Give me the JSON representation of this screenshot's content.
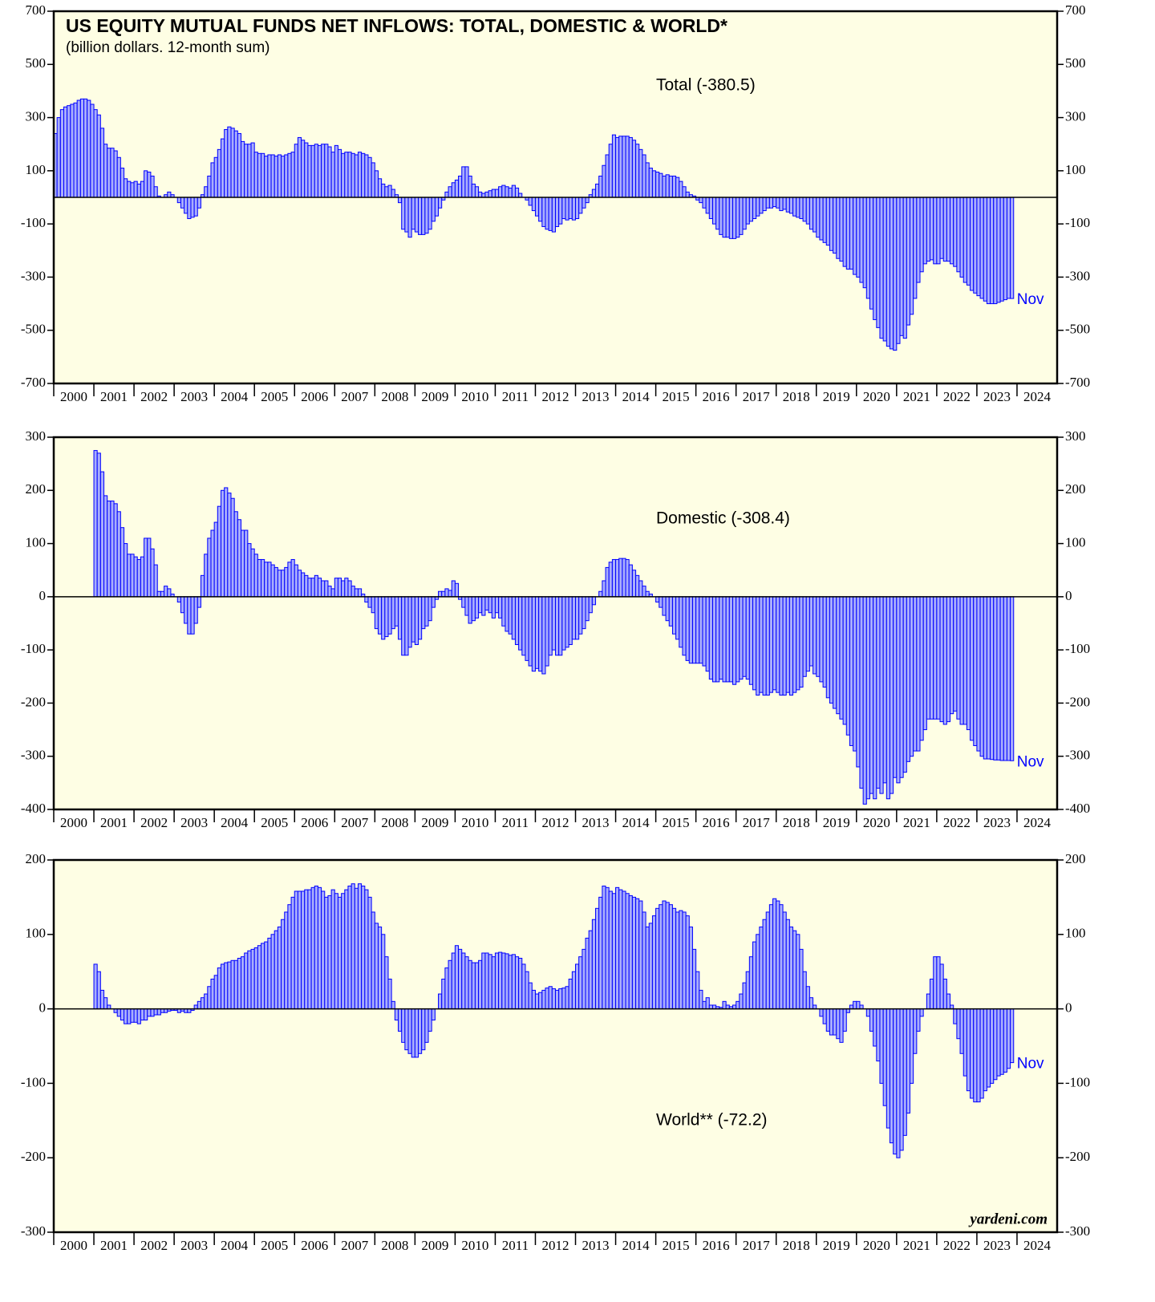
{
  "chart_data": {
    "type": "bar",
    "title": "US EQUITY MUTUAL FUNDS NET INFLOWS: TOTAL, DOMESTIC & WORLD*",
    "subtitle": "(billion dollars. 12-month sum)",
    "source": "yardeni.com",
    "x": [
      2000,
      2000.083,
      2000.167,
      2000.25,
      2000.333,
      2000.417,
      2000.5,
      2000.583,
      2000.667,
      2000.75,
      2000.833,
      2000.917,
      2001,
      2001.083,
      2001.167,
      2001.25,
      2001.333,
      2001.417,
      2001.5,
      2001.583,
      2001.667,
      2001.75,
      2001.833,
      2001.917,
      2002,
      2002.083,
      2002.167,
      2002.25,
      2002.333,
      2002.417,
      2002.5,
      2002.583,
      2002.667,
      2002.75,
      2002.833,
      2002.917,
      2003,
      2003.083,
      2003.167,
      2003.25,
      2003.333,
      2003.417,
      2003.5,
      2003.583,
      2003.667,
      2003.75,
      2003.833,
      2003.917,
      2004,
      2004.083,
      2004.167,
      2004.25,
      2004.333,
      2004.417,
      2004.5,
      2004.583,
      2004.667,
      2004.75,
      2004.833,
      2004.917,
      2005,
      2005.083,
      2005.167,
      2005.25,
      2005.333,
      2005.417,
      2005.5,
      2005.583,
      2005.667,
      2005.75,
      2005.833,
      2005.917,
      2006,
      2006.083,
      2006.167,
      2006.25,
      2006.333,
      2006.417,
      2006.5,
      2006.583,
      2006.667,
      2006.75,
      2006.833,
      2006.917,
      2007,
      2007.083,
      2007.167,
      2007.25,
      2007.333,
      2007.417,
      2007.5,
      2007.583,
      2007.667,
      2007.75,
      2007.833,
      2007.917,
      2008,
      2008.083,
      2008.167,
      2008.25,
      2008.333,
      2008.417,
      2008.5,
      2008.583,
      2008.667,
      2008.75,
      2008.833,
      2008.917,
      2009,
      2009.083,
      2009.167,
      2009.25,
      2009.333,
      2009.417,
      2009.5,
      2009.583,
      2009.667,
      2009.75,
      2009.833,
      2009.917,
      2010,
      2010.083,
      2010.167,
      2010.25,
      2010.333,
      2010.417,
      2010.5,
      2010.583,
      2010.667,
      2010.75,
      2010.833,
      2010.917,
      2011,
      2011.083,
      2011.167,
      2011.25,
      2011.333,
      2011.417,
      2011.5,
      2011.583,
      2011.667,
      2011.75,
      2011.833,
      2011.917,
      2012,
      2012.083,
      2012.167,
      2012.25,
      2012.333,
      2012.417,
      2012.5,
      2012.583,
      2012.667,
      2012.75,
      2012.833,
      2012.917,
      2013,
      2013.083,
      2013.167,
      2013.25,
      2013.333,
      2013.417,
      2013.5,
      2013.583,
      2013.667,
      2013.75,
      2013.833,
      2013.917,
      2014,
      2014.083,
      2014.167,
      2014.25,
      2014.333,
      2014.417,
      2014.5,
      2014.583,
      2014.667,
      2014.75,
      2014.833,
      2014.917,
      2015,
      2015.083,
      2015.167,
      2015.25,
      2015.333,
      2015.417,
      2015.5,
      2015.583,
      2015.667,
      2015.75,
      2015.833,
      2015.917,
      2016,
      2016.083,
      2016.167,
      2016.25,
      2016.333,
      2016.417,
      2016.5,
      2016.583,
      2016.667,
      2016.75,
      2016.833,
      2016.917,
      2017,
      2017.083,
      2017.167,
      2017.25,
      2017.333,
      2017.417,
      2017.5,
      2017.583,
      2017.667,
      2017.75,
      2017.833,
      2017.917,
      2018,
      2018.083,
      2018.167,
      2018.25,
      2018.333,
      2018.417,
      2018.5,
      2018.583,
      2018.667,
      2018.75,
      2018.833,
      2018.917,
      2019,
      2019.083,
      2019.167,
      2019.25,
      2019.333,
      2019.417,
      2019.5,
      2019.583,
      2019.667,
      2019.75,
      2019.833,
      2019.917,
      2020,
      2020.083,
      2020.167,
      2020.25,
      2020.333,
      2020.417,
      2020.5,
      2020.583,
      2020.667,
      2020.75,
      2020.833,
      2020.917,
      2021,
      2021.083,
      2021.167,
      2021.25,
      2021.333,
      2021.417,
      2021.5,
      2021.583,
      2021.667,
      2021.75,
      2021.833,
      2021.917,
      2022,
      2022.083,
      2022.167,
      2022.25,
      2022.333,
      2022.417,
      2022.5,
      2022.583,
      2022.667,
      2022.75,
      2022.833,
      2022.917,
      2023,
      2023.083,
      2023.167,
      2023.25,
      2023.333,
      2023.417,
      2023.5,
      2023.583,
      2023.667,
      2023.75,
      2023.833
    ],
    "xlim": [
      2000,
      2025
    ],
    "xticks": [
      2000,
      2001,
      2002,
      2003,
      2004,
      2005,
      2006,
      2007,
      2008,
      2009,
      2010,
      2011,
      2012,
      2013,
      2014,
      2015,
      2016,
      2017,
      2018,
      2019,
      2020,
      2021,
      2022,
      2023,
      2024
    ],
    "series": [
      {
        "name": "Total (-380.5)",
        "color": "#0000ff",
        "annotation": "Nov",
        "ylim": [
          -700,
          700
        ],
        "yticks": [
          -700,
          -500,
          -300,
          -100,
          100,
          300,
          500,
          700
        ],
        "values": [
          240,
          300,
          330,
          340,
          345,
          350,
          355,
          365,
          370,
          370,
          365,
          350,
          330,
          310,
          260,
          200,
          185,
          185,
          175,
          150,
          110,
          70,
          60,
          55,
          60,
          50,
          60,
          100,
          95,
          80,
          40,
          5,
          0,
          10,
          20,
          10,
          0,
          -20,
          -40,
          -60,
          -80,
          -75,
          -70,
          -40,
          10,
          40,
          80,
          130,
          150,
          180,
          220,
          255,
          265,
          260,
          250,
          240,
          210,
          200,
          200,
          205,
          170,
          165,
          165,
          155,
          160,
          160,
          155,
          160,
          155,
          160,
          165,
          170,
          200,
          225,
          215,
          205,
          195,
          195,
          200,
          195,
          200,
          200,
          190,
          170,
          195,
          180,
          165,
          170,
          170,
          165,
          160,
          170,
          165,
          160,
          150,
          130,
          100,
          70,
          50,
          40,
          45,
          30,
          10,
          -20,
          -120,
          -130,
          -150,
          -120,
          -130,
          -140,
          -140,
          -135,
          -120,
          -90,
          -70,
          -40,
          -10,
          20,
          40,
          55,
          65,
          80,
          115,
          115,
          80,
          50,
          40,
          20,
          15,
          20,
          25,
          30,
          30,
          40,
          45,
          40,
          35,
          45,
          35,
          15,
          0,
          -10,
          -30,
          -50,
          -70,
          -90,
          -110,
          -120,
          -125,
          -130,
          -110,
          -100,
          -80,
          -85,
          -80,
          -85,
          -80,
          -60,
          -40,
          -20,
          10,
          30,
          50,
          80,
          120,
          160,
          200,
          235,
          225,
          230,
          230,
          230,
          225,
          215,
          200,
          180,
          160,
          130,
          110,
          100,
          95,
          90,
          80,
          85,
          80,
          80,
          75,
          60,
          40,
          20,
          10,
          5,
          -10,
          -20,
          -40,
          -60,
          -80,
          -100,
          -120,
          -140,
          -150,
          -150,
          -155,
          -155,
          -150,
          -140,
          -120,
          -100,
          -90,
          -80,
          -70,
          -60,
          -50,
          -40,
          -40,
          -35,
          -40,
          -50,
          -45,
          -55,
          -60,
          -70,
          -75,
          -80,
          -90,
          -100,
          -120,
          -130,
          -150,
          -160,
          -170,
          -180,
          -200,
          -210,
          -230,
          -240,
          -260,
          -270,
          -270,
          -290,
          -300,
          -320,
          -340,
          -380,
          -420,
          -460,
          -490,
          -530,
          -540,
          -560,
          -570,
          -575,
          -550,
          -520,
          -530,
          -480,
          -440,
          -380,
          -320,
          -280,
          -250,
          -240,
          -235,
          -250,
          -250,
          -230,
          -240,
          -240,
          -250,
          -260,
          -280,
          -300,
          -320,
          -330,
          -350,
          -360,
          -370,
          -380,
          -390,
          -400,
          -400,
          -400,
          -395,
          -390,
          -385,
          -380,
          -380.5
        ]
      },
      {
        "name": "Domestic (-308.4)",
        "color": "#0000ff",
        "annotation": "Nov",
        "ylim": [
          -400,
          300
        ],
        "yticks": [
          -400,
          -300,
          -200,
          -100,
          0,
          100,
          200,
          300
        ],
        "values": [
          null,
          null,
          null,
          null,
          null,
          null,
          null,
          null,
          null,
          null,
          null,
          null,
          275,
          270,
          235,
          190,
          180,
          180,
          175,
          160,
          130,
          100,
          80,
          80,
          75,
          70,
          75,
          110,
          110,
          90,
          60,
          10,
          10,
          20,
          15,
          5,
          0,
          -10,
          -30,
          -50,
          -70,
          -70,
          -50,
          -20,
          40,
          80,
          110,
          125,
          140,
          170,
          200,
          205,
          195,
          185,
          160,
          145,
          125,
          125,
          100,
          90,
          80,
          70,
          70,
          65,
          65,
          60,
          55,
          50,
          50,
          55,
          65,
          70,
          60,
          50,
          45,
          40,
          35,
          35,
          40,
          35,
          30,
          30,
          20,
          15,
          35,
          35,
          30,
          35,
          30,
          20,
          15,
          15,
          5,
          -10,
          -20,
          -30,
          -60,
          -70,
          -80,
          -75,
          -70,
          -60,
          -55,
          -80,
          -110,
          -110,
          -95,
          -85,
          -90,
          -80,
          -60,
          -55,
          -45,
          -20,
          -5,
          10,
          10,
          15,
          12,
          30,
          25,
          -5,
          -20,
          -35,
          -50,
          -45,
          -40,
          -30,
          -35,
          -25,
          -30,
          -40,
          -30,
          -40,
          -55,
          -65,
          -70,
          -80,
          -90,
          -100,
          -110,
          -120,
          -130,
          -140,
          -135,
          -140,
          -145,
          -130,
          -110,
          -100,
          -110,
          -110,
          -100,
          -95,
          -90,
          -80,
          -80,
          -70,
          -60,
          -45,
          -30,
          -15,
          0,
          10,
          30,
          55,
          65,
          70,
          70,
          72,
          72,
          70,
          60,
          50,
          40,
          30,
          20,
          10,
          5,
          0,
          -10,
          -20,
          -35,
          -45,
          -55,
          -70,
          -80,
          -95,
          -110,
          -120,
          -125,
          -125,
          -125,
          -125,
          -130,
          -140,
          -155,
          -160,
          -160,
          -155,
          -160,
          -160,
          -160,
          -165,
          -160,
          -155,
          -150,
          -155,
          -165,
          -175,
          -185,
          -180,
          -185,
          -185,
          -180,
          -175,
          -180,
          -185,
          -185,
          -180,
          -185,
          -180,
          -175,
          -170,
          -150,
          -140,
          -130,
          -145,
          -150,
          -160,
          -170,
          -190,
          -200,
          -210,
          -220,
          -230,
          -240,
          -260,
          -280,
          -290,
          -320,
          -360,
          -390,
          -380,
          -370,
          -380,
          -360,
          -370,
          -350,
          -380,
          -370,
          -340,
          -350,
          -340,
          -330,
          -310,
          -300,
          -290,
          -290,
          -270,
          -250,
          -230,
          -230,
          -230,
          -230,
          -235,
          -240,
          -235,
          -220,
          -215,
          -230,
          -240,
          -240,
          -250,
          -270,
          -280,
          -290,
          -300,
          -305,
          -305,
          -306,
          -307,
          -307,
          -308,
          -308,
          -308,
          -308.4
        ]
      },
      {
        "name": "World** (-72.2)",
        "color": "#0000ff",
        "annotation": "Nov",
        "ylim": [
          -300,
          200
        ],
        "yticks": [
          -300,
          -200,
          -100,
          0,
          100,
          200
        ],
        "values": [
          null,
          null,
          null,
          null,
          null,
          null,
          null,
          null,
          null,
          null,
          null,
          null,
          60,
          50,
          25,
          15,
          5,
          0,
          -5,
          -10,
          -15,
          -20,
          -20,
          -18,
          -18,
          -20,
          -15,
          -15,
          -10,
          -10,
          -8,
          -8,
          -5,
          -5,
          -3,
          -2,
          -2,
          -5,
          -3,
          -5,
          -5,
          -2,
          5,
          10,
          15,
          20,
          30,
          40,
          45,
          55,
          60,
          62,
          63,
          65,
          65,
          68,
          70,
          75,
          78,
          80,
          82,
          85,
          88,
          90,
          95,
          100,
          105,
          110,
          120,
          130,
          140,
          150,
          158,
          158,
          158,
          160,
          160,
          163,
          165,
          163,
          158,
          150,
          152,
          160,
          155,
          150,
          155,
          160,
          165,
          168,
          162,
          168,
          165,
          160,
          150,
          130,
          115,
          110,
          100,
          70,
          40,
          10,
          -15,
          -30,
          -45,
          -55,
          -60,
          -65,
          -65,
          -60,
          -55,
          -45,
          -30,
          -15,
          0,
          20,
          40,
          55,
          65,
          75,
          85,
          80,
          75,
          70,
          65,
          62,
          62,
          65,
          75,
          75,
          73,
          70,
          75,
          76,
          75,
          74,
          72,
          73,
          70,
          68,
          60,
          50,
          35,
          25,
          20,
          22,
          25,
          28,
          30,
          27,
          25,
          27,
          28,
          30,
          40,
          50,
          60,
          70,
          80,
          95,
          105,
          120,
          135,
          150,
          165,
          163,
          158,
          155,
          163,
          160,
          158,
          155,
          152,
          150,
          148,
          145,
          130,
          110,
          115,
          125,
          135,
          140,
          145,
          143,
          140,
          135,
          130,
          132,
          130,
          125,
          110,
          80,
          50,
          25,
          10,
          15,
          5,
          5,
          3,
          2,
          10,
          5,
          3,
          5,
          10,
          20,
          35,
          50,
          70,
          90,
          100,
          110,
          120,
          130,
          140,
          148,
          145,
          140,
          130,
          120,
          110,
          105,
          100,
          80,
          50,
          30,
          15,
          5,
          0,
          -10,
          -20,
          -30,
          -35,
          -35,
          -40,
          -45,
          -30,
          -5,
          5,
          10,
          10,
          5,
          0,
          -10,
          -30,
          -50,
          -70,
          -100,
          -130,
          -160,
          -180,
          -195,
          -200,
          -190,
          -170,
          -140,
          -100,
          -60,
          -30,
          -10,
          0,
          20,
          40,
          70,
          70,
          60,
          40,
          20,
          5,
          -20,
          -40,
          -60,
          -90,
          -110,
          -120,
          -125,
          -125,
          -120,
          -110,
          -105,
          -100,
          -95,
          -90,
          -88,
          -85,
          -80,
          -72.2
        ]
      }
    ]
  }
}
